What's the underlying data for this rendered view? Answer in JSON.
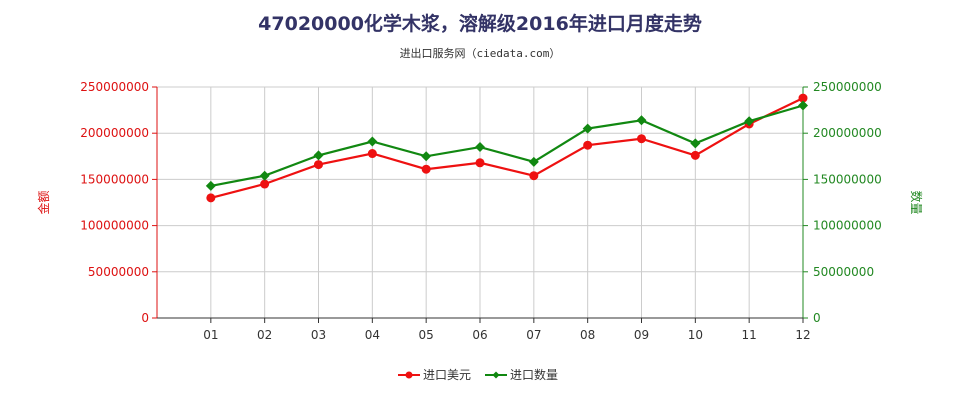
{
  "chart_data": {
    "type": "line",
    "title": "47020000化学木浆，溶解级2016年进口月度走势",
    "subtitle": "进出口服务网（ciedata.com）",
    "categories": [
      "01",
      "02",
      "03",
      "04",
      "05",
      "06",
      "07",
      "08",
      "09",
      "10",
      "11",
      "12"
    ],
    "y_left": {
      "label": "金额",
      "ylim": [
        0,
        250000000
      ],
      "ticks": [
        "0",
        "50000000",
        "100000000",
        "150000000",
        "200000000",
        "250000000"
      ],
      "color": "#dd1111"
    },
    "y_right": {
      "label": "数量",
      "ylim": [
        0,
        250000000
      ],
      "ticks": [
        "0",
        "50000000",
        "100000000",
        "150000000",
        "200000000",
        "250000000"
      ],
      "color": "#228822"
    },
    "series": [
      {
        "name": "进口美元",
        "axis": "left",
        "color": "#ee1111",
        "marker": "circle",
        "values": [
          130000000,
          145000000,
          166000000,
          178000000,
          161000000,
          168000000,
          154000000,
          187000000,
          194000000,
          176000000,
          210000000,
          238000000
        ]
      },
      {
        "name": "进口数量",
        "axis": "right",
        "color": "#118811",
        "marker": "diamond",
        "values": [
          143000000,
          154000000,
          176000000,
          191000000,
          175000000,
          185000000,
          169000000,
          205000000,
          214000000,
          189000000,
          213000000,
          230000000
        ]
      }
    ],
    "grid": true,
    "legend": "bottom-center"
  }
}
